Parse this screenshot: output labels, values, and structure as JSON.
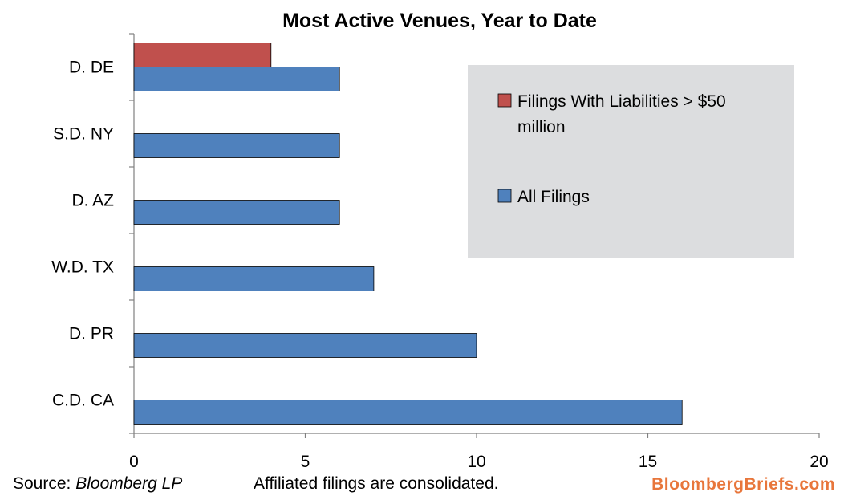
{
  "chart_data": {
    "type": "bar",
    "orientation": "horizontal",
    "title": "Most Active Venues, Year to Date",
    "categories": [
      "D. DE",
      "S.D. NY",
      "D. AZ",
      "W.D. TX",
      "D. PR",
      "C.D. CA"
    ],
    "series": [
      {
        "name": "Filings With Liabilities > $50 million",
        "color": "#C0504D",
        "values": [
          4,
          null,
          null,
          null,
          null,
          null
        ]
      },
      {
        "name": "All Filings",
        "color": "#4F81BD",
        "values": [
          6,
          6,
          6,
          7,
          10,
          16
        ]
      }
    ],
    "xlim": [
      0,
      20
    ],
    "xticks": [
      0,
      5,
      10,
      15,
      20
    ],
    "grid": false,
    "legend_position": "right"
  },
  "footer": {
    "source_label": "Source:",
    "source_name": "Bloomberg LP",
    "note": "Affiliated filings are consolidated.",
    "brand_text": "BloombergBriefs.com",
    "brand_color": "#E8763B"
  },
  "colors": {
    "legend_background": "#DCDDDF",
    "axis": "#808080",
    "bar_stroke": "#000000"
  }
}
